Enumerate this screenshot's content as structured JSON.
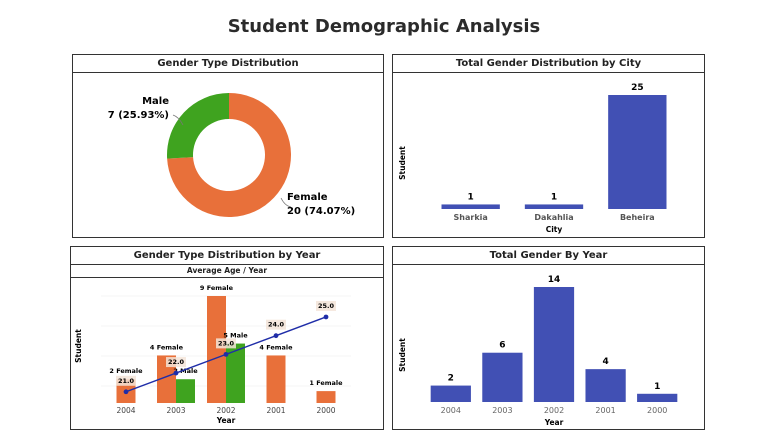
{
  "dashboard_title": "Student Demographic Analysis",
  "colors": {
    "female": "#E8703A",
    "male": "#3FA31F",
    "bar": "#4150B4",
    "line": "#1F2DA8"
  },
  "panels": {
    "gender_type": {
      "title": "Gender Type Distribution"
    },
    "gender_city": {
      "title": "Total Gender Distribution by City"
    },
    "gender_year": {
      "title": "Gender Type Distribution by Year",
      "subtitle": "Average Age / Year"
    },
    "total_year": {
      "title": "Total Gender By Year"
    }
  },
  "chart_data": [
    {
      "type": "pie",
      "title": "Gender Type Distribution",
      "donut": true,
      "slices": [
        {
          "label": "Female",
          "value": 20,
          "display": "20 (74.07%)"
        },
        {
          "label": "Male",
          "value": 7,
          "display": "7 (25.93%)"
        }
      ]
    },
    {
      "type": "bar",
      "title": "Total Gender Distribution by City",
      "xlabel": "City",
      "ylabel": "Student",
      "categories": [
        "Sharkia",
        "Dakahlia",
        "Beheira"
      ],
      "values": [
        1,
        1,
        25
      ],
      "ylim": [
        0,
        25
      ]
    },
    {
      "type": "bar",
      "title": "Gender Type Distribution by Year",
      "subtitle": "Average Age / Year",
      "xlabel": "Year",
      "ylabel": "Student",
      "categories": [
        "2004",
        "2003",
        "2002",
        "2001",
        "2000"
      ],
      "series": [
        {
          "name": "Female",
          "values": [
            2,
            4,
            9,
            4,
            1
          ],
          "labels": [
            "2 Female",
            "4 Female",
            "9 Female",
            "4 Female",
            "1 Female"
          ]
        },
        {
          "name": "Male",
          "values": [
            0,
            2,
            5,
            0,
            0
          ],
          "labels": [
            "",
            "2 Male",
            "5 Male",
            "",
            ""
          ]
        }
      ],
      "line": {
        "values": [
          21.0,
          22.0,
          23.0,
          24.0,
          25.0
        ],
        "labels": [
          "21.0",
          "22.0",
          "23.0",
          "24.0",
          "25.0"
        ]
      },
      "ylim": [
        0,
        9
      ]
    },
    {
      "type": "bar",
      "title": "Total Gender By Year",
      "xlabel": "Year",
      "ylabel": "Student",
      "categories": [
        "2004",
        "2003",
        "2002",
        "2001",
        "2000"
      ],
      "values": [
        2,
        6,
        14,
        4,
        1
      ],
      "ylim": [
        0,
        14
      ]
    }
  ]
}
